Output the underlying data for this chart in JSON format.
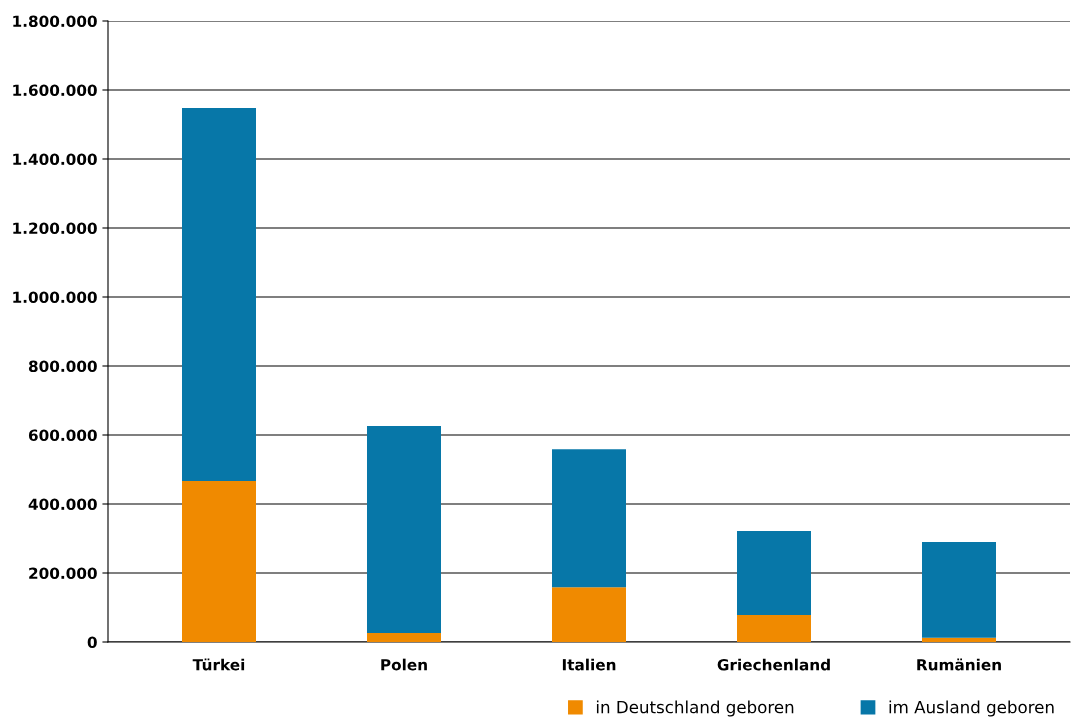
{
  "chart_data": {
    "type": "bar",
    "stacked": true,
    "categories": [
      "Türkei",
      "Polen",
      "Italien",
      "Griechenland",
      "Rumänien"
    ],
    "series": [
      {
        "name": "in Deutschland geboren",
        "color": "#f08a00",
        "values": [
          467000,
          26000,
          159000,
          78000,
          12000
        ]
      },
      {
        "name": "im Ausland geboren",
        "color": "#0777a8",
        "values": [
          1081000,
          600000,
          400000,
          244000,
          278000
        ]
      }
    ],
    "ylim": [
      0,
      1800000
    ],
    "yticks": [
      {
        "value": 0,
        "label": "0"
      },
      {
        "value": 200000,
        "label": "200.000"
      },
      {
        "value": 400000,
        "label": "400.000"
      },
      {
        "value": 600000,
        "label": "600.000"
      },
      {
        "value": 800000,
        "label": "800.000"
      },
      {
        "value": 1000000,
        "label": "1.000.000"
      },
      {
        "value": 1200000,
        "label": "1.200.000"
      },
      {
        "value": 1400000,
        "label": "1.400.000"
      },
      {
        "value": 1600000,
        "label": "1.600.000"
      },
      {
        "value": 1800000,
        "label": "1.800.000"
      }
    ],
    "grid": "y",
    "legend": "bottom right"
  }
}
